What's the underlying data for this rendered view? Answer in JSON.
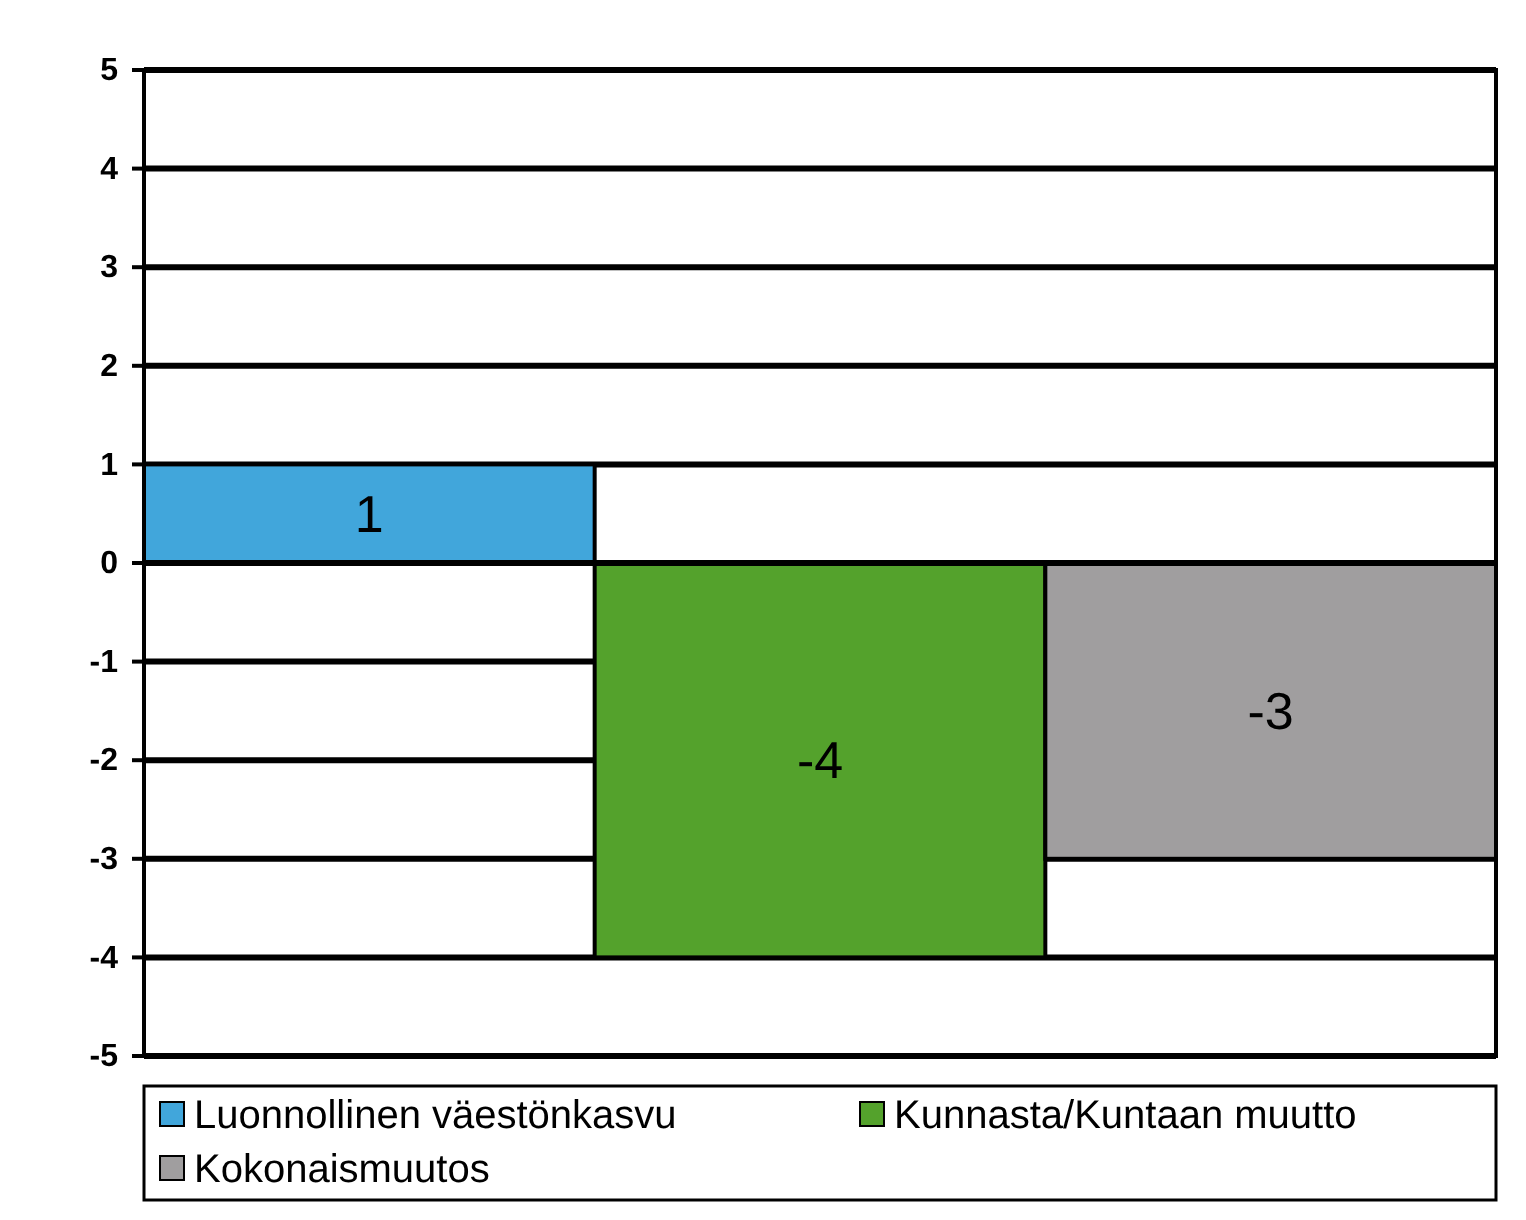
{
  "chart_data": {
    "type": "bar",
    "categories": [
      null
    ],
    "series": [
      {
        "name": "Luonnollinen väestönkasvu",
        "color": "#41a6db",
        "values": [
          1
        ]
      },
      {
        "name": "Kunnasta/Kuntaan muutto",
        "color": "#54a22c",
        "values": [
          -4
        ]
      },
      {
        "name": "Kokonaismuutos",
        "color": "#a09e9f",
        "values": [
          -3
        ]
      }
    ],
    "ylim": [
      -5,
      5
    ],
    "yticks": [
      -5,
      -4,
      -3,
      -2,
      -1,
      0,
      1,
      2,
      3,
      4,
      5
    ],
    "grid": "y",
    "legend": "bottom",
    "data_labels": true
  }
}
